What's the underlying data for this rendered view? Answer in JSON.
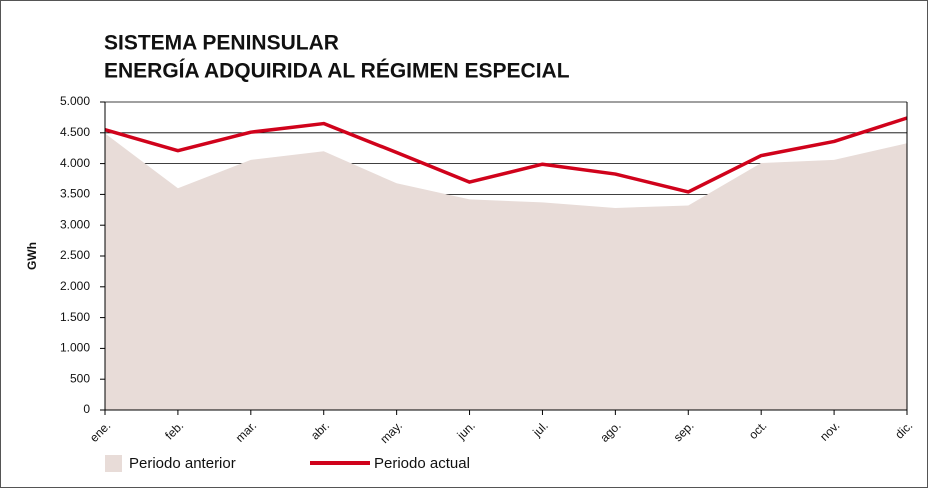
{
  "chart_data": {
    "type": "line",
    "title": [
      "SISTEMA PENINSULAR",
      "ENERGÍA ADQUIRIDA AL RÉGIMEN ESPECIAL"
    ],
    "y_label": "GWh",
    "categories": [
      "ene.",
      "feb.",
      "mar.",
      "abr.",
      "may.",
      "jun.",
      "jul.",
      "ago.",
      "sep.",
      "oct.",
      "nov.",
      "dic."
    ],
    "series": [
      {
        "name": "Periodo anterior",
        "kind": "area",
        "color": "#e8dcd8",
        "values": [
          4490,
          3600,
          4060,
          4200,
          3680,
          3420,
          3370,
          3280,
          3320,
          4010,
          4060,
          4330
        ]
      },
      {
        "name": "Periodo actual",
        "kind": "line",
        "color": "#d0021b",
        "values": [
          4550,
          4210,
          4510,
          4650,
          4180,
          3700,
          3990,
          3830,
          3540,
          4130,
          4360,
          4740
        ]
      }
    ],
    "ylim": [
      0,
      5000
    ],
    "yticks": [
      0,
      500,
      {
        "value": 1000,
        "label": "1.000"
      },
      {
        "value": 1500,
        "label": "1.500"
      },
      {
        "value": 2000,
        "label": "2.000"
      },
      {
        "value": 2500,
        "label": "2.500"
      },
      {
        "value": 3000,
        "label": "3.000"
      },
      {
        "value": 3500,
        "label": "3.500"
      },
      {
        "value": 4000,
        "label": "4.000"
      },
      {
        "value": 4500,
        "label": "4.500"
      },
      {
        "value": 5000,
        "label": "5.000"
      }
    ],
    "grid": true
  }
}
